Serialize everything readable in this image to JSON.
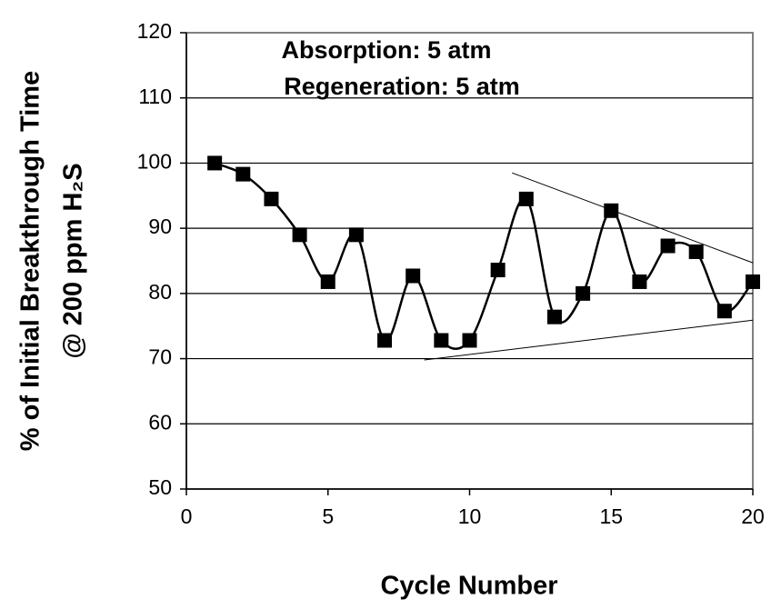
{
  "chart_data": {
    "type": "line",
    "xlabel": "Cycle Number",
    "ylabel": [
      "% of Initial Breakthrough Time",
      "@ 200 ppm H₂S"
    ],
    "annotations": [
      "Absorption: 5 atm",
      "Regeneration: 5 atm"
    ],
    "x": [
      1,
      2,
      3,
      4,
      5,
      6,
      7,
      8,
      9,
      10,
      11,
      12,
      13,
      14,
      15,
      16,
      17,
      18,
      19,
      20
    ],
    "series": [
      {
        "color": "#000000",
        "values": [
          100,
          98.3,
          94.5,
          89,
          81.8,
          89,
          72.8,
          82.7,
          72.8,
          72.8,
          83.6,
          94.5,
          76.4,
          80,
          92.7,
          81.8,
          87.3,
          86.4,
          77.3,
          81.8
        ]
      }
    ],
    "trend_lines": [
      {
        "x": [
          11.5,
          20
        ],
        "y": [
          98.5,
          84.7
        ]
      },
      {
        "x": [
          8.4,
          20
        ],
        "y": [
          69.8,
          75.9
        ]
      }
    ],
    "xlim": [
      0,
      20
    ],
    "xticks": [
      0,
      5,
      10,
      15,
      20
    ],
    "ylim": [
      50,
      120
    ],
    "yticks": [
      50,
      60,
      70,
      80,
      90,
      100,
      110,
      120
    ],
    "grid": true,
    "smooth": true
  }
}
